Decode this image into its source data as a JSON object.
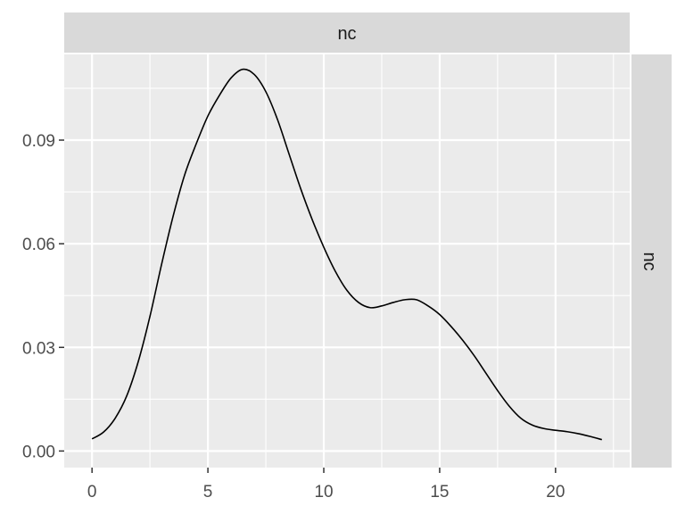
{
  "chart_data": {
    "type": "line",
    "title": "",
    "xlabel": "",
    "ylabel": "",
    "facet_top_label": "nc",
    "facet_right_label": "nc",
    "xlim": [
      -1.2,
      23.2
    ],
    "ylim": [
      -0.0048,
      0.1148
    ],
    "x_ticks": [
      0,
      5,
      10,
      15,
      20
    ],
    "x_tick_labels": [
      "0",
      "5",
      "10",
      "15",
      "20"
    ],
    "y_ticks": [
      0.0,
      0.03,
      0.06,
      0.09
    ],
    "y_tick_labels": [
      "0.00",
      "0.03",
      "0.06",
      "0.09"
    ],
    "grid": true,
    "legend": "none",
    "colors": {
      "panel": "#ebebeb",
      "strip": "#d9d9d9",
      "grid": "#ffffff",
      "line": "#000000",
      "tick_text": "#4d4d4d"
    },
    "series": [
      {
        "x": [
          0,
          0.5,
          1,
          1.5,
          2,
          2.5,
          3,
          3.5,
          4,
          4.5,
          5,
          5.5,
          6,
          6.5,
          7,
          7.5,
          8,
          8.5,
          9,
          9.5,
          10,
          10.5,
          11,
          11.5,
          12,
          12.5,
          13,
          13.5,
          14,
          14.5,
          15,
          15.5,
          16,
          16.5,
          17,
          17.5,
          18,
          18.5,
          19,
          19.5,
          20,
          20.5,
          21,
          21.5,
          22
        ],
        "y": [
          0.0035,
          0.0055,
          0.0095,
          0.016,
          0.026,
          0.039,
          0.054,
          0.068,
          0.08,
          0.089,
          0.097,
          0.103,
          0.108,
          0.1105,
          0.109,
          0.104,
          0.096,
          0.086,
          0.076,
          0.067,
          0.059,
          0.052,
          0.0465,
          0.043,
          0.0415,
          0.042,
          0.043,
          0.0438,
          0.0438,
          0.042,
          0.0395,
          0.036,
          0.032,
          0.0275,
          0.0225,
          0.0175,
          0.013,
          0.0095,
          0.0075,
          0.0065,
          0.006,
          0.0056,
          0.005,
          0.0042,
          0.0033
        ]
      }
    ]
  }
}
